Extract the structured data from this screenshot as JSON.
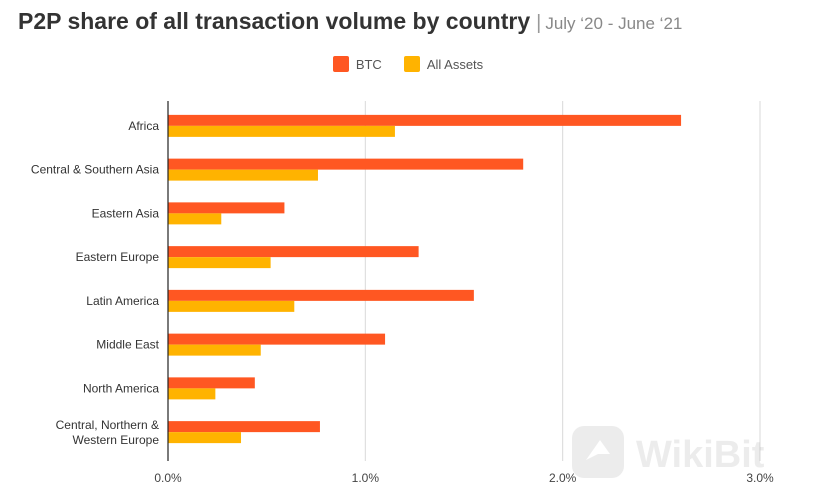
{
  "chart_data": {
    "type": "bar",
    "orientation": "horizontal",
    "title": "P2P share of all transaction volume by country",
    "subtitle": "July ‘20 - June ‘21",
    "title_separator": "|",
    "categories": [
      "Africa",
      "Central & Southern Asia",
      "Eastern Asia",
      "Eastern Europe",
      "Latin America",
      "Middle East",
      "North America",
      "Central, Northern & Western Europe"
    ],
    "series": [
      {
        "name": "BTC",
        "color": "#FF5722",
        "values": [
          2.6,
          1.8,
          0.59,
          1.27,
          1.55,
          1.1,
          0.44,
          0.77
        ]
      },
      {
        "name": "All Assets",
        "color": "#FFB300",
        "values": [
          1.15,
          0.76,
          0.27,
          0.52,
          0.64,
          0.47,
          0.24,
          0.37
        ]
      }
    ],
    "xlim": [
      0,
      3.0
    ],
    "x_ticks": [
      "0.0%",
      "1.0%",
      "2.0%",
      "3.0%"
    ],
    "x_unit": "%",
    "grid": true,
    "legend_position": "top-center",
    "xlabel": "",
    "ylabel": ""
  },
  "watermark": {
    "text": "WikiBit"
  }
}
